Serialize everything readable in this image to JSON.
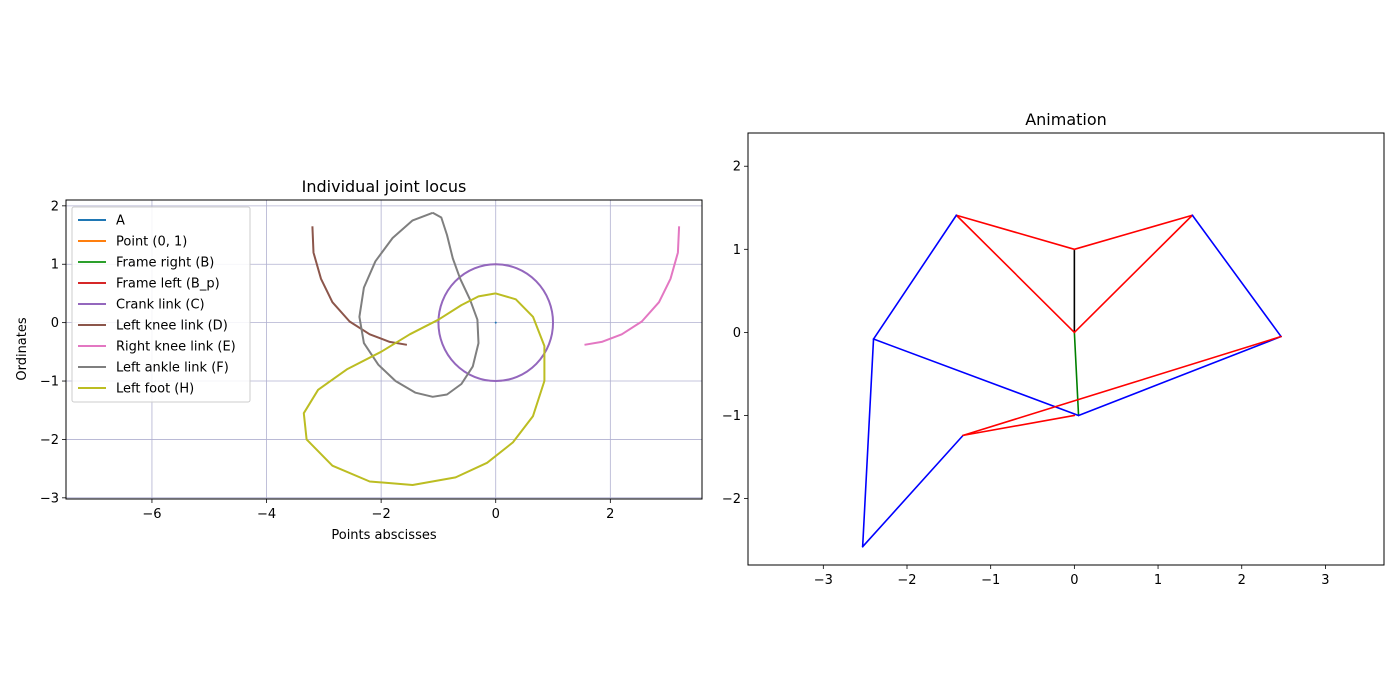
{
  "chart_data": [
    {
      "type": "line",
      "title": "Individual joint locus",
      "xlabel": "Points abscisses",
      "ylabel": "Ordinates",
      "xlim": [
        -7.5,
        3.6
      ],
      "ylim": [
        -3.02,
        2.1
      ],
      "xticks": [
        -6,
        -4,
        -2,
        0,
        2
      ],
      "yticks": [
        -3,
        -2,
        -1,
        0,
        1,
        2
      ],
      "grid": true,
      "legend_position": "upper-left",
      "series": [
        {
          "name": "A",
          "color": "#1f77b4",
          "points": [
            [
              0,
              0
            ]
          ]
        },
        {
          "name": "Point (0, 1)",
          "color": "#ff7f0e",
          "points": [
            [
              0,
              1
            ]
          ]
        },
        {
          "name": "Frame right (B)",
          "color": "#2ca02c",
          "points": [
            [
              0,
              -1
            ]
          ]
        },
        {
          "name": "Frame left (B_p)",
          "color": "#d62728",
          "points": [
            [
              0,
              -1
            ]
          ]
        },
        {
          "name": "Crank link (C)",
          "color": "#9467bd",
          "shape": "circle",
          "center": [
            0,
            0
          ],
          "radius": 1
        },
        {
          "name": "Left knee link (D)",
          "color": "#8c564b",
          "points": [
            [
              -3.2,
              1.65
            ],
            [
              -3.18,
              1.2
            ],
            [
              -3.05,
              0.75
            ],
            [
              -2.85,
              0.35
            ],
            [
              -2.55,
              0.02
            ],
            [
              -2.2,
              -0.2
            ],
            [
              -1.85,
              -0.33
            ],
            [
              -1.55,
              -0.38
            ]
          ]
        },
        {
          "name": "Right knee link (E)",
          "color": "#e377c2",
          "points": [
            [
              1.55,
              -0.38
            ],
            [
              1.85,
              -0.33
            ],
            [
              2.2,
              -0.2
            ],
            [
              2.55,
              0.02
            ],
            [
              2.85,
              0.35
            ],
            [
              3.05,
              0.75
            ],
            [
              3.18,
              1.2
            ],
            [
              3.2,
              1.65
            ]
          ]
        },
        {
          "name": "Left ankle link (F)",
          "color": "#7f7f7f",
          "points": [
            [
              -1.1,
              1.88
            ],
            [
              -0.95,
              1.8
            ],
            [
              -0.85,
              1.5
            ],
            [
              -0.75,
              1.1
            ],
            [
              -0.62,
              0.75
            ],
            [
              -0.45,
              0.4
            ],
            [
              -0.32,
              0.05
            ],
            [
              -0.3,
              -0.35
            ],
            [
              -0.4,
              -0.75
            ],
            [
              -0.6,
              -1.05
            ],
            [
              -0.85,
              -1.23
            ],
            [
              -1.1,
              -1.27
            ],
            [
              -1.4,
              -1.2
            ],
            [
              -1.75,
              -1.0
            ],
            [
              -2.05,
              -0.72
            ],
            [
              -2.3,
              -0.35
            ],
            [
              -2.38,
              0.1
            ],
            [
              -2.3,
              0.6
            ],
            [
              -2.1,
              1.05
            ],
            [
              -1.8,
              1.45
            ],
            [
              -1.45,
              1.75
            ],
            [
              -1.1,
              1.88
            ]
          ]
        },
        {
          "name": "Left foot (H)",
          "color": "#bcbd22",
          "points": [
            [
              0,
              0.5
            ],
            [
              0.35,
              0.4
            ],
            [
              0.65,
              0.1
            ],
            [
              0.85,
              -0.4
            ],
            [
              0.85,
              -1.0
            ],
            [
              0.65,
              -1.6
            ],
            [
              0.3,
              -2.05
            ],
            [
              -0.15,
              -2.4
            ],
            [
              -0.7,
              -2.65
            ],
            [
              -1.45,
              -2.78
            ],
            [
              -2.2,
              -2.72
            ],
            [
              -2.85,
              -2.45
            ],
            [
              -3.3,
              -2.0
            ],
            [
              -3.35,
              -1.55
            ],
            [
              -3.1,
              -1.15
            ],
            [
              -2.6,
              -0.8
            ],
            [
              -2.0,
              -0.5
            ],
            [
              -1.5,
              -0.2
            ],
            [
              -1.0,
              0.05
            ],
            [
              -0.6,
              0.3
            ],
            [
              -0.3,
              0.45
            ],
            [
              0,
              0.5
            ]
          ]
        }
      ]
    },
    {
      "type": "line",
      "title": "Animation",
      "xlim": [
        -3.9,
        3.7
      ],
      "ylim": [
        -2.8,
        2.4
      ],
      "xticks": [
        -3,
        -2,
        -1,
        0,
        1,
        2,
        3
      ],
      "yticks": [
        -2,
        -1,
        0,
        1,
        2
      ],
      "grid": false,
      "segments": [
        {
          "from": [
            0,
            0
          ],
          "to": [
            0,
            1
          ],
          "color": "#000000"
        },
        {
          "from": [
            0,
            0
          ],
          "to": [
            0.05,
            -1.0
          ],
          "color": "#008000"
        },
        {
          "from": [
            0,
            1
          ],
          "to": [
            -1.41,
            1.41
          ],
          "color": "#ff0000"
        },
        {
          "from": [
            0,
            1
          ],
          "to": [
            1.41,
            1.41
          ],
          "color": "#ff0000"
        },
        {
          "from": [
            0,
            0
          ],
          "to": [
            -1.41,
            1.41
          ],
          "color": "#ff0000"
        },
        {
          "from": [
            0,
            0
          ],
          "to": [
            1.41,
            1.41
          ],
          "color": "#ff0000"
        },
        {
          "from": [
            -1.41,
            1.41
          ],
          "to": [
            -2.4,
            -0.08
          ],
          "color": "#0000ff"
        },
        {
          "from": [
            1.41,
            1.41
          ],
          "to": [
            2.47,
            -0.05
          ],
          "color": "#0000ff"
        },
        {
          "from": [
            -2.4,
            -0.08
          ],
          "to": [
            0.05,
            -1.0
          ],
          "color": "#0000ff"
        },
        {
          "from": [
            2.47,
            -0.05
          ],
          "to": [
            0.05,
            -1.0
          ],
          "color": "#0000ff"
        },
        {
          "from": [
            -2.4,
            -0.08
          ],
          "to": [
            -2.53,
            -2.58
          ],
          "color": "#0000ff"
        },
        {
          "from": [
            -2.53,
            -2.58
          ],
          "to": [
            -1.33,
            -1.24
          ],
          "color": "#0000ff"
        },
        {
          "from": [
            2.47,
            -0.05
          ],
          "to": [
            -1.33,
            -1.24
          ],
          "color": "#ff0000"
        },
        {
          "from": [
            -1.33,
            -1.24
          ],
          "to": [
            0.0,
            -1.0
          ],
          "color": "#ff0000"
        }
      ]
    }
  ]
}
